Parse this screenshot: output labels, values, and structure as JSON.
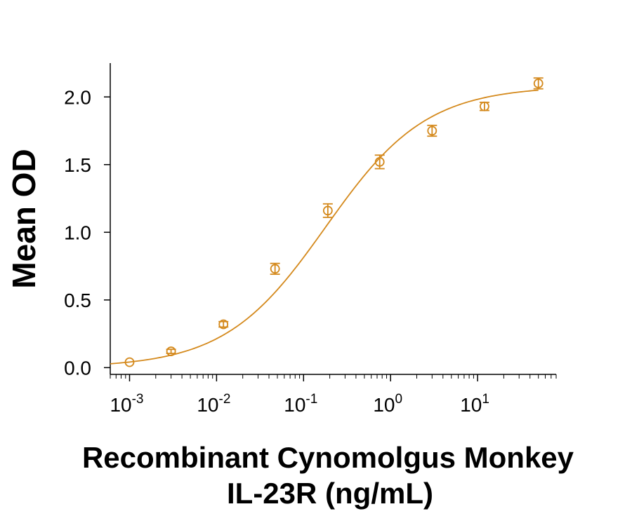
{
  "chart_data": {
    "type": "scatter",
    "title": "",
    "xlabel_lines": [
      "Recombinant Cynomolgus Monkey",
      "IL-23R (ng/mL)"
    ],
    "ylabel": "Mean OD",
    "x_scale": "log",
    "xlim": [
      0.0006,
      80
    ],
    "ylim": [
      -0.05,
      2.25
    ],
    "x_ticks": [
      {
        "value": 0.001,
        "base": "10",
        "exp": "-3"
      },
      {
        "value": 0.01,
        "base": "10",
        "exp": "-2"
      },
      {
        "value": 0.1,
        "base": "10",
        "exp": "-1"
      },
      {
        "value": 1,
        "base": "10",
        "exp": "0"
      },
      {
        "value": 10,
        "base": "10",
        "exp": "1"
      }
    ],
    "y_ticks": [
      {
        "value": 0.0,
        "label": "0.0"
      },
      {
        "value": 0.5,
        "label": "0.5"
      },
      {
        "value": 1.0,
        "label": "1.0"
      },
      {
        "value": 1.5,
        "label": "1.5"
      },
      {
        "value": 2.0,
        "label": "2.0"
      }
    ],
    "color": "#D4891C",
    "grid": false,
    "legend": "none",
    "points": [
      {
        "x": 0.001,
        "y": 0.04,
        "err": 0.0
      },
      {
        "x": 0.003,
        "y": 0.12,
        "err": 0.015
      },
      {
        "x": 0.012,
        "y": 0.32,
        "err": 0.02
      },
      {
        "x": 0.047,
        "y": 0.73,
        "err": 0.04
      },
      {
        "x": 0.19,
        "y": 1.16,
        "err": 0.05
      },
      {
        "x": 0.75,
        "y": 1.52,
        "err": 0.05
      },
      {
        "x": 3.0,
        "y": 1.75,
        "err": 0.04
      },
      {
        "x": 12.0,
        "y": 1.93,
        "err": 0.03
      },
      {
        "x": 50.0,
        "y": 2.1,
        "err": 0.04
      }
    ],
    "fit": {
      "model": "4PL",
      "bottom": 0.0,
      "top": 2.08,
      "ec50": 0.18,
      "hill": 0.75
    }
  }
}
